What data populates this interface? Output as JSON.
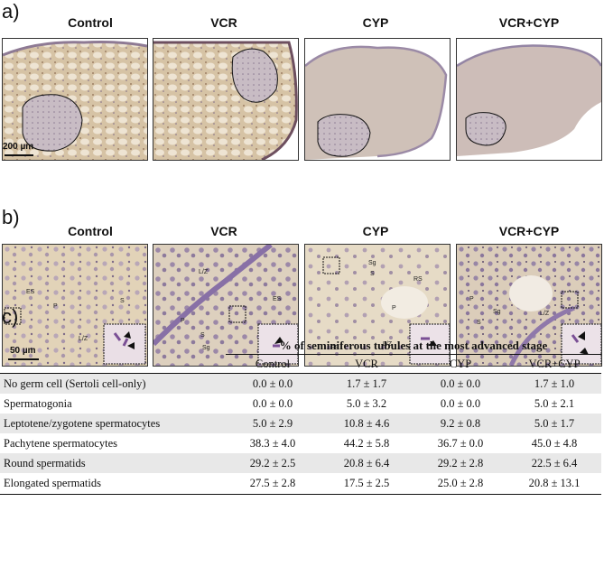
{
  "panels": {
    "a": {
      "label": "a)",
      "titles": [
        "Control",
        "VCR",
        "CYP",
        "VCR+CYP"
      ],
      "scale_bar": "200 µm"
    },
    "b": {
      "label": "b)",
      "titles": [
        "Control",
        "VCR",
        "CYP",
        "VCR+CYP"
      ],
      "scale_bar": "50 µm",
      "cell_labels": {
        "control": [
          "ES",
          "P",
          "S",
          "L/Z"
        ],
        "vcr": [
          "L/Z",
          "ES",
          "P",
          "S",
          "Sg"
        ],
        "cyp": [
          "Sg",
          "S",
          "RS",
          "P",
          "ES",
          "L/Z"
        ],
        "vcrcyp": [
          "P",
          "S",
          "Sg",
          "L/Z"
        ]
      }
    },
    "c": {
      "label": "c)"
    }
  },
  "table": {
    "header": "% of seminiferous tubules at the most advanced stage",
    "columns": [
      "Control",
      "VCR",
      "CYP",
      "VCR+CYP"
    ],
    "rows": [
      {
        "label": "No germ cell (Sertoli cell-only)",
        "values": [
          "0.0 ± 0.0",
          "1.7 ± 1.7",
          "0.0 ± 0.0",
          "1.7 ± 1.0"
        ]
      },
      {
        "label": "Spermatogonia",
        "values": [
          "0.0 ± 0.0",
          "5.0 ± 3.2",
          "0.0 ± 0.0",
          "5.0 ± 2.1"
        ]
      },
      {
        "label": "Leptotene/zygotene spermatocytes",
        "values": [
          "5.0 ± 2.9",
          "10.8 ± 4.6",
          "9.2 ± 0.8",
          "5.0 ± 1.7"
        ]
      },
      {
        "label": "Pachytene spermatocytes",
        "values": [
          "38.3 ± 4.0",
          "44.2 ± 5.8",
          "36.7 ± 0.0",
          "45.0 ± 4.8"
        ]
      },
      {
        "label": "Round spermatids",
        "values": [
          "29.2 ± 2.5",
          "20.8 ± 6.4",
          "29.2 ± 2.8",
          "22.5 ± 6.4"
        ]
      },
      {
        "label": "Elongated spermatids",
        "values": [
          "27.5 ± 2.8",
          "17.5 ± 2.5",
          "25.0 ± 2.8",
          "20.8 ± 13.1"
        ]
      }
    ]
  },
  "colors": {
    "tissue_brown": "#c9b08e",
    "tissue_light": "#e6dac6",
    "stain_purple": "#8a6f9e",
    "row_shade": "#e8e8e8"
  }
}
